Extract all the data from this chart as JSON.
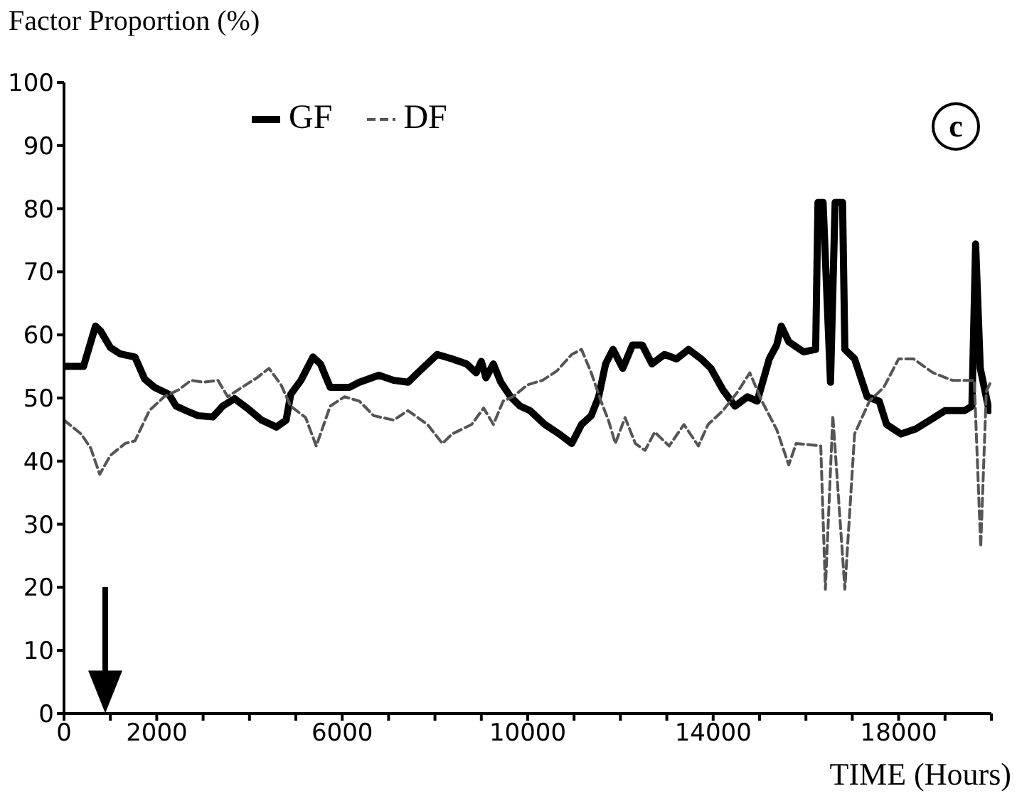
{
  "chart_data": {
    "type": "line",
    "ylabel": "Factor Proportion (%)",
    "xlabel": "TIME (Hours)",
    "annotations": [
      "c"
    ],
    "xlim": [
      0,
      20000
    ],
    "ylim": [
      0,
      100
    ],
    "xticks": [
      0,
      {
        "value": 1000,
        "label": null
      },
      2000,
      {
        "value": 3000,
        "label": null
      },
      {
        "value": 4000,
        "label": null
      },
      {
        "value": 5000,
        "label": null
      },
      6000,
      {
        "value": 7000,
        "label": null
      },
      {
        "value": 8000,
        "label": null
      },
      {
        "value": 9000,
        "label": null
      },
      10000,
      {
        "value": 11000,
        "label": null
      },
      {
        "value": 12000,
        "label": null
      },
      {
        "value": 13000,
        "label": null
      },
      14000,
      {
        "value": 15000,
        "label": null
      },
      {
        "value": 16000,
        "label": null
      },
      {
        "value": 17000,
        "label": null
      },
      18000,
      {
        "value": 19000,
        "label": null
      },
      {
        "value": 20000,
        "label": null
      }
    ],
    "yticks": [
      0,
      10,
      20,
      30,
      40,
      50,
      60,
      70,
      80,
      90,
      100
    ],
    "legend": "top left",
    "marker": "none",
    "series": [
      {
        "name": "GF",
        "color": "#000000",
        "line_style": "solid",
        "x": [
          0,
          420,
          680,
          790,
          1000,
          1210,
          1530,
          1740,
          1950,
          2260,
          2420,
          2630,
          2890,
          3210,
          3420,
          3680,
          3950,
          4260,
          4580,
          4790,
          4890,
          5110,
          5370,
          5530,
          5740,
          6160,
          6370,
          6790,
          7110,
          7420,
          7630,
          8050,
          8370,
          8680,
          8890,
          9000,
          9100,
          9260,
          9420,
          9630,
          9840,
          10050,
          10370,
          10680,
          10950,
          11160,
          11370,
          11530,
          11680,
          11840,
          12050,
          12260,
          12470,
          12680,
          12950,
          13210,
          13470,
          13740,
          13950,
          14210,
          14470,
          14740,
          14950,
          15210,
          15370,
          15470,
          15630,
          15950,
          16210,
          16260,
          16370,
          16530,
          16630,
          16790,
          16840,
          17050,
          17320,
          17580,
          17740,
          18050,
          18370,
          18680,
          19000,
          19420,
          19580,
          19660,
          19760,
          19950
        ],
        "values": [
          55,
          55,
          61.4,
          60.6,
          58,
          57,
          56.5,
          53,
          51.7,
          50.6,
          48.7,
          48,
          47.2,
          47,
          48.7,
          49.9,
          48.4,
          46.5,
          45.4,
          46.5,
          50.6,
          52.8,
          56.5,
          55.4,
          51.7,
          51.7,
          52.5,
          53.6,
          52.8,
          52.5,
          54,
          56.9,
          56.2,
          55.4,
          54,
          55.8,
          53.2,
          55.4,
          52.5,
          50.2,
          48.7,
          48,
          45.8,
          44.3,
          42.8,
          45.8,
          47.2,
          50.2,
          55.4,
          57.7,
          54.7,
          58.4,
          58.4,
          55.4,
          56.9,
          56.2,
          57.7,
          56.2,
          54.7,
          51.3,
          48.7,
          50.2,
          49.5,
          56.2,
          58.4,
          61.4,
          58.9,
          57.3,
          57.7,
          81,
          81,
          52.5,
          81,
          81,
          57.7,
          56.2,
          50.2,
          49.5,
          45.8,
          44.3,
          45.1,
          46.5,
          48,
          48,
          48.7,
          74.4,
          54.7,
          48
        ]
      },
      {
        "name": "DF",
        "color": "#555555",
        "line_style": "dashed",
        "x": [
          0,
          370,
          580,
          770,
          1000,
          1320,
          1530,
          1840,
          2160,
          2470,
          2740,
          3000,
          3320,
          3530,
          3840,
          4160,
          4420,
          4680,
          4890,
          5210,
          5440,
          5740,
          6050,
          6370,
          6680,
          7110,
          7420,
          7840,
          8160,
          8370,
          8790,
          9050,
          9260,
          9470,
          9680,
          10000,
          10320,
          10630,
          10950,
          11160,
          11370,
          11580,
          11740,
          11890,
          12100,
          12320,
          12530,
          12740,
          13050,
          13370,
          13680,
          13890,
          14210,
          14530,
          14790,
          15050,
          15370,
          15630,
          15790,
          16320,
          16420,
          16580,
          16840,
          17050,
          17370,
          17680,
          18000,
          18320,
          18740,
          19160,
          19630,
          19770,
          19890,
          20000
        ],
        "values": [
          46.5,
          44.3,
          42,
          37.9,
          40.9,
          42.8,
          43.2,
          48,
          50.2,
          51.3,
          52.8,
          52.5,
          52.8,
          50.2,
          51.7,
          53.2,
          54.7,
          52.1,
          48.7,
          46.9,
          42.4,
          48.7,
          50.2,
          49.5,
          47.2,
          46.5,
          48,
          45.8,
          42.8,
          44.3,
          45.8,
          48.4,
          45.8,
          49.5,
          50.2,
          52.1,
          52.8,
          54.3,
          56.9,
          57.7,
          54,
          49.5,
          46.5,
          42.8,
          46.9,
          42.8,
          41.7,
          44.6,
          42.4,
          45.8,
          42.4,
          45.8,
          48,
          51,
          54,
          49.5,
          45,
          39.4,
          42.8,
          42.4,
          19.7,
          47.2,
          19.7,
          44.3,
          49.5,
          51.7,
          56.2,
          56.2,
          54,
          52.8,
          52.8,
          26.4,
          51,
          52.8
        ]
      }
    ]
  }
}
